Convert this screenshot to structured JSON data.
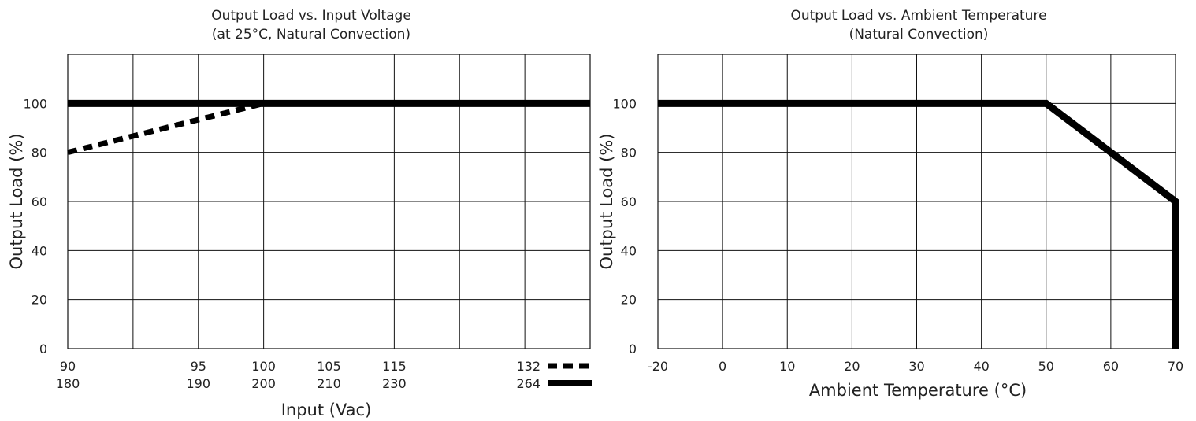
{
  "chart_data": [
    {
      "type": "line",
      "title": "Output Load vs. Input Voltage",
      "subtitle": "(at 25°C, Natural Convection)",
      "xlabel": "Input (Vac)",
      "ylabel": "Output Load (%)",
      "ylim": [
        0,
        120
      ],
      "y_ticks": [
        0,
        20,
        40,
        60,
        80,
        100
      ],
      "x_ticks_top": [
        "90",
        "95",
        "100",
        "105",
        "115"
      ],
      "x_ticks_bottom": [
        "180",
        "190",
        "200",
        "210",
        "230"
      ],
      "grid": true,
      "legend_position": "bottom-right",
      "series": [
        {
          "name": "132",
          "style": "dashed",
          "x": [
            "90",
            "100"
          ],
          "y": [
            80,
            100
          ]
        },
        {
          "name": "264",
          "style": "solid",
          "x": [
            "180",
            "264"
          ],
          "y": [
            100,
            100
          ]
        }
      ],
      "colors": {
        "line": "#000000"
      }
    },
    {
      "type": "line",
      "title": "Output Load vs. Ambient Temperature",
      "subtitle": "(Natural Convection)",
      "xlabel": "Ambient Temperature (°C)",
      "ylabel": "Output Load (%)",
      "xlim": [
        -20,
        70
      ],
      "ylim": [
        0,
        120
      ],
      "x_ticks": [
        "-20",
        "0",
        "10",
        "20",
        "30",
        "40",
        "50",
        "60",
        "70"
      ],
      "y_ticks": [
        0,
        20,
        40,
        60,
        80,
        100
      ],
      "grid": true,
      "series": [
        {
          "style": "solid",
          "x": [
            -20,
            50,
            70,
            70
          ],
          "y": [
            100,
            100,
            60,
            0
          ]
        }
      ],
      "colors": {
        "line": "#000000"
      }
    }
  ]
}
